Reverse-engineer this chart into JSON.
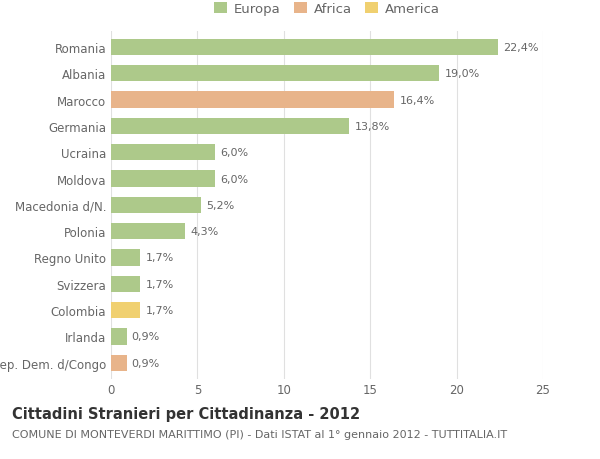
{
  "categories": [
    "Romania",
    "Albania",
    "Marocco",
    "Germania",
    "Ucraina",
    "Moldova",
    "Macedonia d/N.",
    "Polonia",
    "Regno Unito",
    "Svizzera",
    "Colombia",
    "Irlanda",
    "Rep. Dem. d/Congo"
  ],
  "values": [
    22.4,
    19.0,
    16.4,
    13.8,
    6.0,
    6.0,
    5.2,
    4.3,
    1.7,
    1.7,
    1.7,
    0.9,
    0.9
  ],
  "labels": [
    "22,4%",
    "19,0%",
    "16,4%",
    "13,8%",
    "6,0%",
    "6,0%",
    "5,2%",
    "4,3%",
    "1,7%",
    "1,7%",
    "1,7%",
    "0,9%",
    "0,9%"
  ],
  "continents": [
    "Europa",
    "Europa",
    "Africa",
    "Europa",
    "Europa",
    "Europa",
    "Europa",
    "Europa",
    "Europa",
    "Europa",
    "America",
    "Europa",
    "Africa"
  ],
  "colors": {
    "Europa": "#adc98a",
    "Africa": "#e8b48a",
    "America": "#f0d070"
  },
  "legend_items": [
    "Europa",
    "Africa",
    "America"
  ],
  "title": "Cittadini Stranieri per Cittadinanza - 2012",
  "subtitle": "COMUNE DI MONTEVERDI MARITTIMO (PI) - Dati ISTAT al 1° gennaio 2012 - TUTTITALIA.IT",
  "xlim": [
    0,
    25
  ],
  "xticks": [
    0,
    5,
    10,
    15,
    20,
    25
  ],
  "background_color": "#ffffff",
  "grid_color": "#e0e0e0",
  "bar_height": 0.62,
  "title_fontsize": 10.5,
  "subtitle_fontsize": 8,
  "label_fontsize": 8,
  "tick_fontsize": 8.5,
  "legend_fontsize": 9.5
}
